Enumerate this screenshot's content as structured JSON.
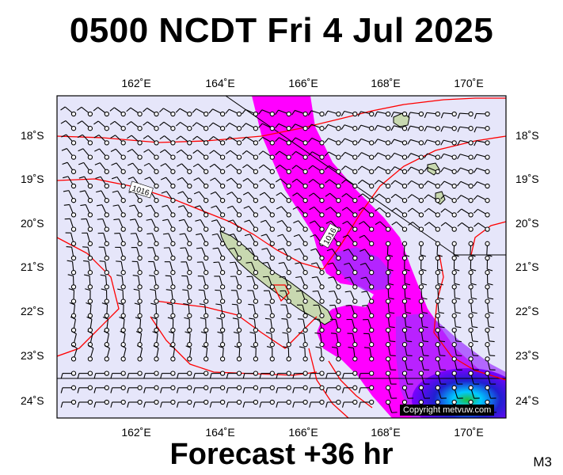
{
  "title": "0500 NCDT Fri 4 Jul 2025",
  "footer": "Forecast +36 hr",
  "model_label": "M3",
  "copyright": "Copyright metvuw.com",
  "lon_labels": [
    "162˚E",
    "164˚E",
    "166˚E",
    "168˚E",
    "170˚E"
  ],
  "lat_labels": [
    "18˚S",
    "19˚S",
    "20˚S",
    "21˚S",
    "22˚S",
    "23˚S",
    "24˚S"
  ],
  "isobar_labels": [
    "1016",
    "1016"
  ],
  "colors": {
    "background": "#e6e6fa",
    "rain_magenta": "#ff00ff",
    "rain_purple": "#9b30ff",
    "rain_blue": "#2020d0",
    "rain_cyan": "#00c8ff",
    "rain_green": "#20c040",
    "isobar": "#ff0000",
    "land": "#c8d8b0"
  },
  "icons": [
    "wind-barb-icon",
    "land-mass-icon"
  ]
}
